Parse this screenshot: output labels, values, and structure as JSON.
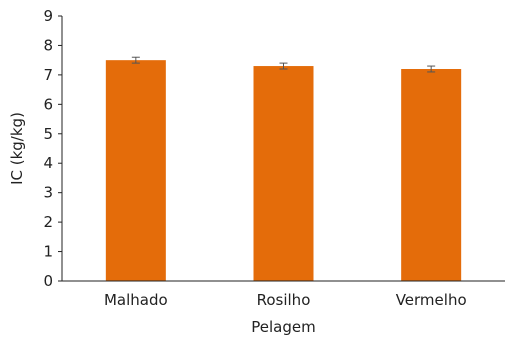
{
  "chart_data": {
    "type": "bar",
    "categories": [
      "Malhado",
      "Rosilho",
      "Vermelho"
    ],
    "values": [
      7.5,
      7.3,
      7.2
    ],
    "errors": [
      0.1,
      0.1,
      0.1
    ],
    "xlabel": "Pelagem",
    "ylabel": "IC (kg/kg)",
    "ylim": [
      0,
      9
    ],
    "yticks": [
      0,
      1,
      2,
      3,
      4,
      5,
      6,
      7,
      8,
      9
    ],
    "bar_color": "#E46C0A",
    "grid": false,
    "legend": "none"
  }
}
